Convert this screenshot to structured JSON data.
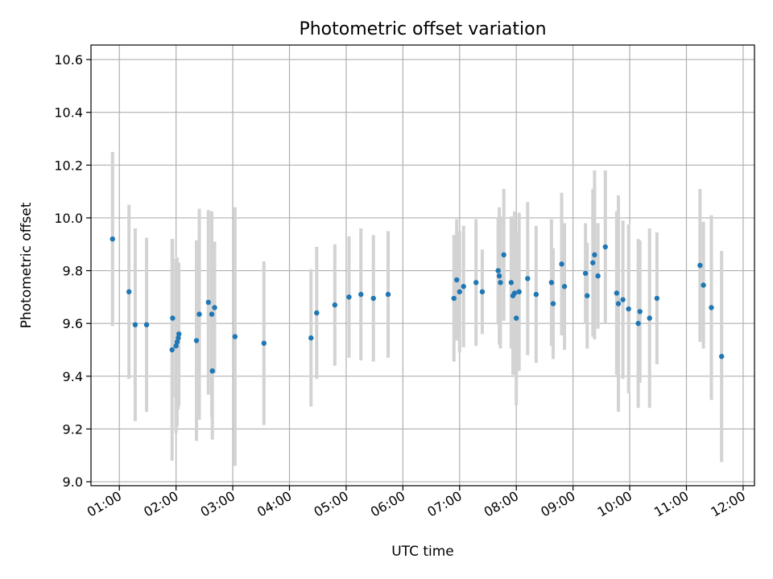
{
  "chart_data": {
    "type": "scatter",
    "title": "Photometric offset variation",
    "xlabel": "UTC time",
    "ylabel": "Photometric offset",
    "xlim": [
      0.5,
      12.2
    ],
    "ylim": [
      8.985,
      10.655
    ],
    "x_ticks": [
      1,
      2,
      3,
      4,
      5,
      6,
      7,
      8,
      9,
      10,
      11,
      12
    ],
    "x_tick_labels": [
      "01:00",
      "02:00",
      "03:00",
      "04:00",
      "05:00",
      "06:00",
      "07:00",
      "08:00",
      "09:00",
      "10:00",
      "11:00",
      "12:00"
    ],
    "y_ticks": [
      9.0,
      9.2,
      9.4,
      9.6,
      9.8,
      10.0,
      10.2,
      10.4,
      10.6
    ],
    "y_tick_labels": [
      "9.0",
      "9.2",
      "9.4",
      "9.6",
      "9.8",
      "10.0",
      "10.2",
      "10.4",
      "10.6"
    ],
    "grid": true,
    "colors": {
      "point": "#1f77b4",
      "errorbar": "#d3d3d3"
    },
    "series": [
      {
        "x": [
          0.88,
          1.17,
          1.28,
          1.48,
          1.93,
          1.94,
          2.0,
          2.02,
          2.04,
          2.05,
          2.36,
          2.41,
          2.57,
          2.63,
          2.64,
          2.68,
          3.04,
          3.55,
          4.38,
          4.48,
          4.8,
          5.05,
          5.26,
          5.48,
          5.74,
          6.9,
          6.95,
          7.0,
          7.07,
          7.29,
          7.4,
          7.68,
          7.7,
          7.72,
          7.78,
          7.91,
          7.94,
          7.97,
          8.0,
          8.05,
          8.2,
          8.35,
          8.62,
          8.65,
          8.8,
          8.85,
          9.22,
          9.25,
          9.35,
          9.38,
          9.44,
          9.57,
          9.77,
          9.8,
          9.88,
          9.98,
          10.15,
          10.18,
          10.35,
          10.48,
          11.24,
          11.3,
          11.44,
          11.62
        ],
        "y": [
          9.92,
          9.72,
          9.595,
          9.595,
          9.5,
          9.62,
          9.515,
          9.53,
          9.545,
          9.56,
          9.535,
          9.635,
          9.68,
          9.635,
          9.42,
          9.66,
          9.55,
          9.525,
          9.545,
          9.64,
          9.67,
          9.7,
          9.71,
          9.695,
          9.71,
          9.695,
          9.765,
          9.72,
          9.74,
          9.755,
          9.72,
          9.8,
          9.78,
          9.755,
          9.86,
          9.755,
          9.705,
          9.715,
          9.62,
          9.72,
          9.77,
          9.71,
          9.755,
          9.675,
          9.825,
          9.74,
          9.79,
          9.705,
          9.83,
          9.86,
          9.78,
          9.89,
          9.715,
          9.675,
          9.69,
          9.655,
          9.6,
          9.645,
          9.62,
          9.695,
          9.82,
          9.745,
          9.66,
          9.475
        ],
        "err": [
          0.33,
          0.33,
          0.365,
          0.33,
          0.42,
          0.3,
          0.33,
          0.32,
          0.27,
          0.27,
          0.38,
          0.4,
          0.35,
          0.39,
          0.26,
          0.25,
          0.49,
          0.31,
          0.26,
          0.25,
          0.23,
          0.23,
          0.25,
          0.24,
          0.24,
          0.24,
          0.23,
          0.23,
          0.23,
          0.24,
          0.16,
          0.2,
          0.26,
          0.25,
          0.25,
          0.25,
          0.3,
          0.31,
          0.33,
          0.3,
          0.29,
          0.26,
          0.24,
          0.21,
          0.27,
          0.24,
          0.19,
          0.2,
          0.28,
          0.32,
          0.2,
          0.29,
          0.31,
          0.41,
          0.3,
          0.32,
          0.32,
          0.27,
          0.34,
          0.25,
          0.29,
          0.24,
          0.35,
          0.4
        ]
      }
    ]
  }
}
